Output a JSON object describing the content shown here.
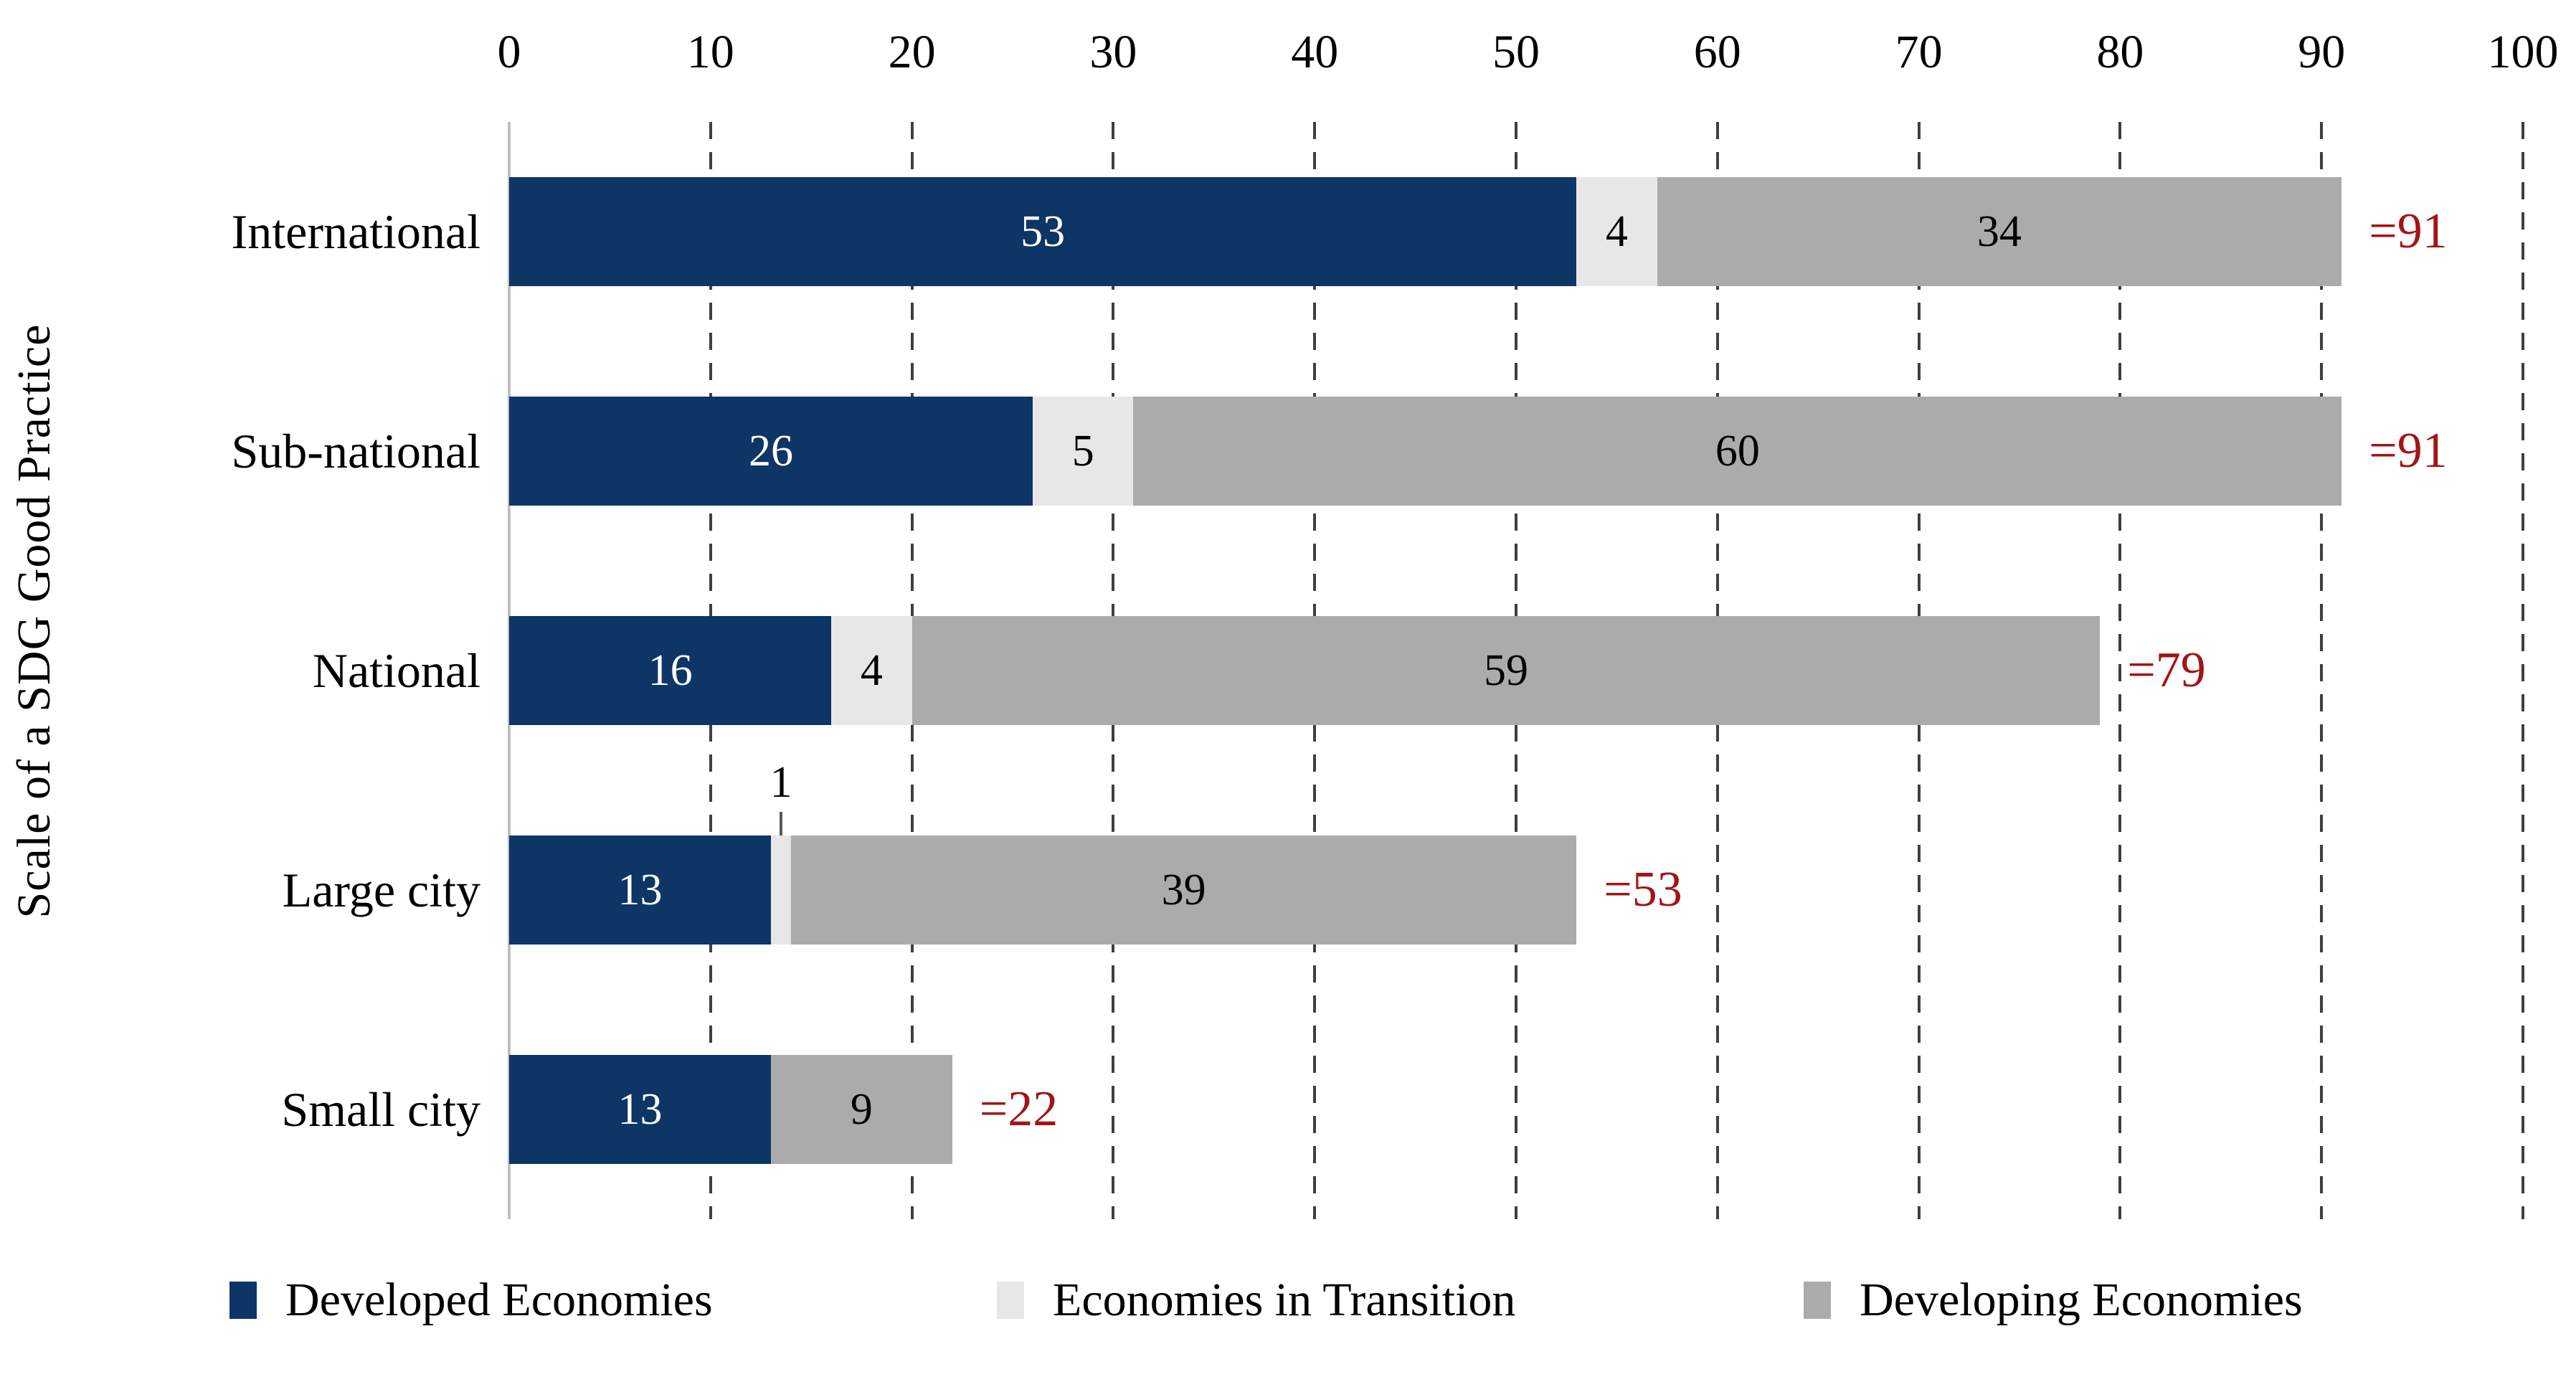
{
  "chart_data": {
    "type": "bar",
    "orientation": "horizontal",
    "stacked": true,
    "title": "",
    "xlabel": "",
    "ylabel": "Scale of a SDG Good Practice",
    "xlim": [
      0,
      100
    ],
    "x_ticks": [
      0,
      10,
      20,
      30,
      40,
      50,
      60,
      70,
      80,
      90,
      100
    ],
    "axis_side": "top",
    "grid": "vertical-dashed",
    "legend_position": "bottom",
    "categories": [
      "International",
      "Sub-national",
      "National",
      "Large city",
      "Small city"
    ],
    "series": [
      {
        "name": "Developed Economies",
        "color": "#0d3566",
        "values": [
          53,
          26,
          16,
          13,
          13
        ]
      },
      {
        "name": "Economies in Transition",
        "color": "#e7e7e7",
        "values": [
          4,
          5,
          4,
          1,
          0
        ]
      },
      {
        "name": "Developing Economies",
        "color": "#ababab",
        "values": [
          34,
          60,
          59,
          39,
          9
        ]
      }
    ],
    "value_label_colors": [
      "#ffffff",
      "#000000",
      "#000000"
    ],
    "totals": [
      "=91",
      "=91",
      "=79",
      "=53",
      "=22"
    ],
    "total_color": "#a21515",
    "callouts": [
      {
        "category_index": 3,
        "series_index": 1,
        "label": "1"
      }
    ]
  }
}
